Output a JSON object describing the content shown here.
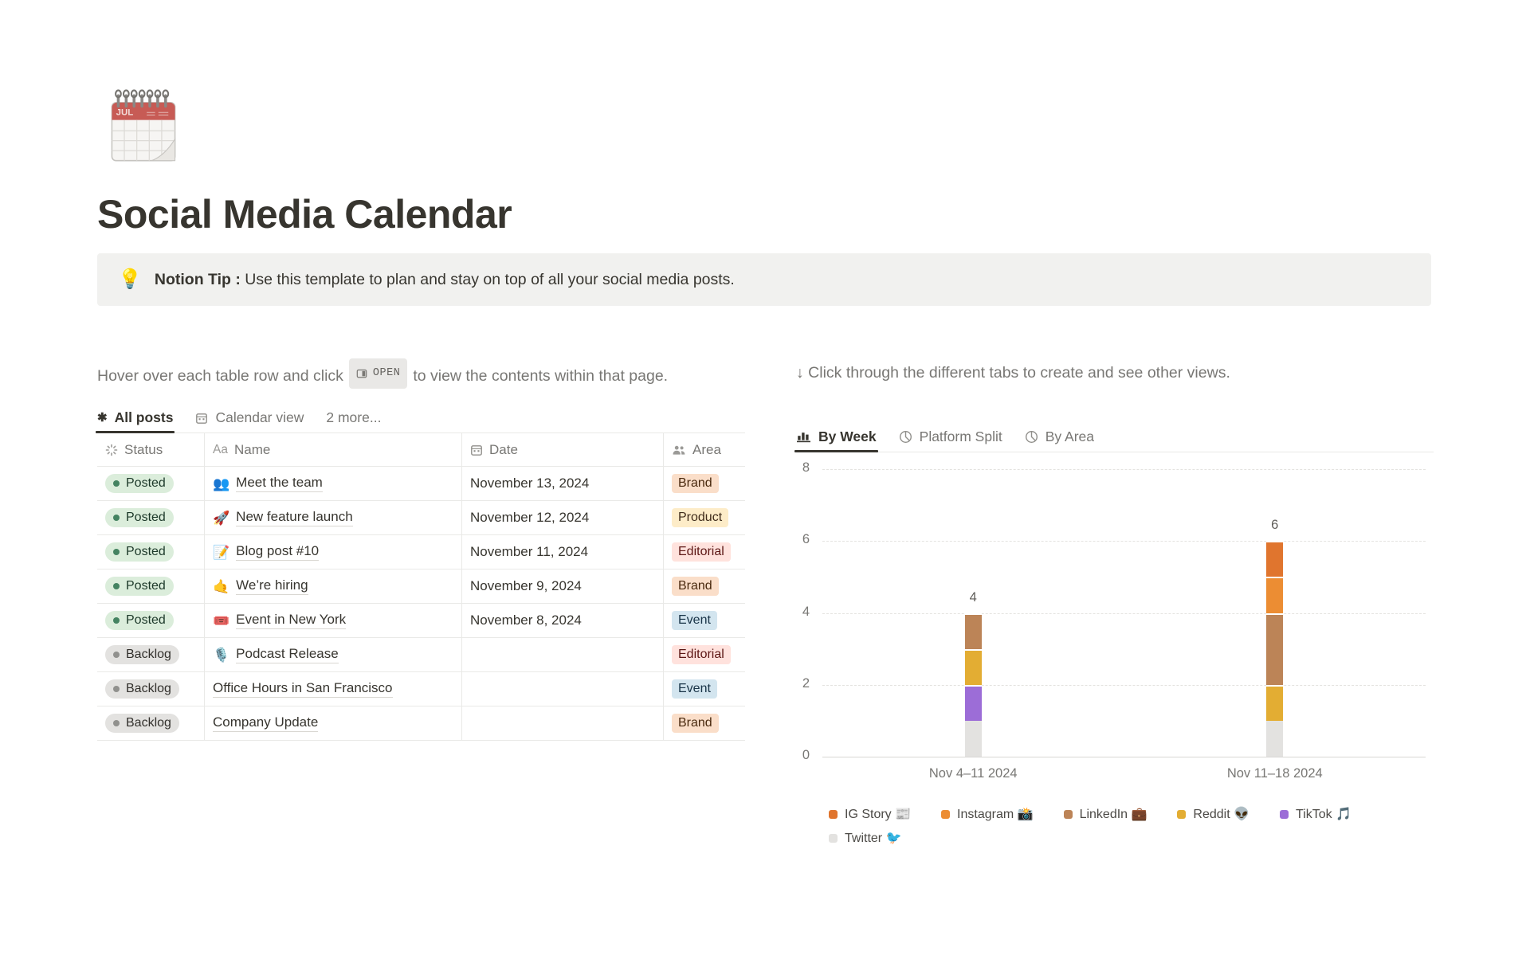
{
  "page": {
    "title": "Social Media Calendar",
    "icon_label": "JUL"
  },
  "callout": {
    "icon": "💡",
    "bold_text": "Notion Tip :",
    "text": "Use this template to plan and stay on top of all your social media posts."
  },
  "left": {
    "instruction_before": "Hover over each table row and click",
    "open_badge": "OPEN",
    "instruction_after": "to view the contents within that page.",
    "tabs": [
      {
        "label": "All posts",
        "icon": "asterisk-icon",
        "active": true
      },
      {
        "label": "Calendar view",
        "icon": "calendar-icon",
        "active": false
      },
      {
        "label": "2 more...",
        "icon": null,
        "active": false
      }
    ]
  },
  "table": {
    "columns": [
      {
        "label": "Status",
        "icon": "status-spinner-icon"
      },
      {
        "label": "Name",
        "icon": "aa-icon"
      },
      {
        "label": "Date",
        "icon": "calendar-icon"
      },
      {
        "label": "Area",
        "icon": "people-icon"
      }
    ],
    "rows": [
      {
        "status": "Posted",
        "icon": "👥",
        "name": "Meet the team",
        "date": "November 13, 2024",
        "area": "Brand"
      },
      {
        "status": "Posted",
        "icon": "🚀",
        "name": "New feature launch",
        "date": "November 12, 2024",
        "area": "Product"
      },
      {
        "status": "Posted",
        "icon": "📝",
        "name": "Blog post #10",
        "date": "November 11, 2024",
        "area": "Editorial"
      },
      {
        "status": "Posted",
        "icon": "🤙",
        "name": "We’re hiring",
        "date": "November 9, 2024",
        "area": "Brand"
      },
      {
        "status": "Posted",
        "icon": "🎟️",
        "name": "Event in New York",
        "date": "November 8, 2024",
        "area": "Event"
      },
      {
        "status": "Backlog",
        "icon": "🎙️",
        "name": "Podcast Release",
        "date": "",
        "area": "Editorial"
      },
      {
        "status": "Backlog",
        "icon": "",
        "name": "Office Hours in San Francisco",
        "date": "",
        "area": "Event"
      },
      {
        "status": "Backlog",
        "icon": "",
        "name": "Company Update",
        "date": "",
        "area": "Brand"
      }
    ],
    "status_colors": {
      "Posted": {
        "bg": "#DBEDDB",
        "dot": "#448361",
        "text": "#1C3829"
      },
      "Backlog": {
        "bg": "#E3E2E0",
        "dot": "#91918E",
        "text": "#32302C"
      }
    },
    "area_colors": {
      "Brand": {
        "bg": "#FADEC9",
        "text": "#49290E"
      },
      "Product": {
        "bg": "#FDECC8",
        "text": "#402C1B"
      },
      "Editorial": {
        "bg": "#FFE2DD",
        "text": "#5D1715"
      },
      "Event": {
        "bg": "#D3E5EF",
        "text": "#183347"
      }
    }
  },
  "right": {
    "instruction": "↓ Click through the different tabs to create and see other views.",
    "tabs": [
      {
        "label": "By Week",
        "icon": "bar-chart-icon",
        "active": true
      },
      {
        "label": "Platform Split",
        "icon": "pie-chart-icon",
        "active": false
      },
      {
        "label": "By Area",
        "icon": "pie-chart-icon",
        "active": false
      }
    ]
  },
  "chart_data": {
    "type": "bar",
    "stacked": true,
    "categories": [
      "Nov 4–11 2024",
      "Nov 11–18 2024"
    ],
    "series": [
      {
        "name": "IG Story 📰",
        "color": "#E0752E",
        "values": [
          0,
          1
        ]
      },
      {
        "name": "Instagram 📸",
        "color": "#EC8D33",
        "values": [
          0,
          1
        ]
      },
      {
        "name": "LinkedIn 💼",
        "color": "#BC8457",
        "values": [
          1,
          2
        ]
      },
      {
        "name": "Reddit 👽",
        "color": "#E3AD33",
        "values": [
          1,
          1
        ]
      },
      {
        "name": "TikTok 🎵",
        "color": "#9C6DD7",
        "values": [
          1,
          0
        ]
      },
      {
        "name": "Twitter 🐦",
        "color": "#E3E2E0",
        "values": [
          1,
          1
        ]
      }
    ],
    "stack_order_bottom_to_top": [
      "Twitter 🐦",
      "TikTok 🎵",
      "Reddit 👽",
      "LinkedIn 💼",
      "Instagram 📸",
      "IG Story 📰"
    ],
    "bar_totals": [
      4,
      6
    ],
    "title": "",
    "xlabel": "",
    "ylabel": "",
    "ylim": [
      0,
      8
    ],
    "yticks": [
      0,
      2,
      4,
      6,
      8
    ],
    "grid": "horizontal-dashed",
    "legend_position": "bottom"
  }
}
